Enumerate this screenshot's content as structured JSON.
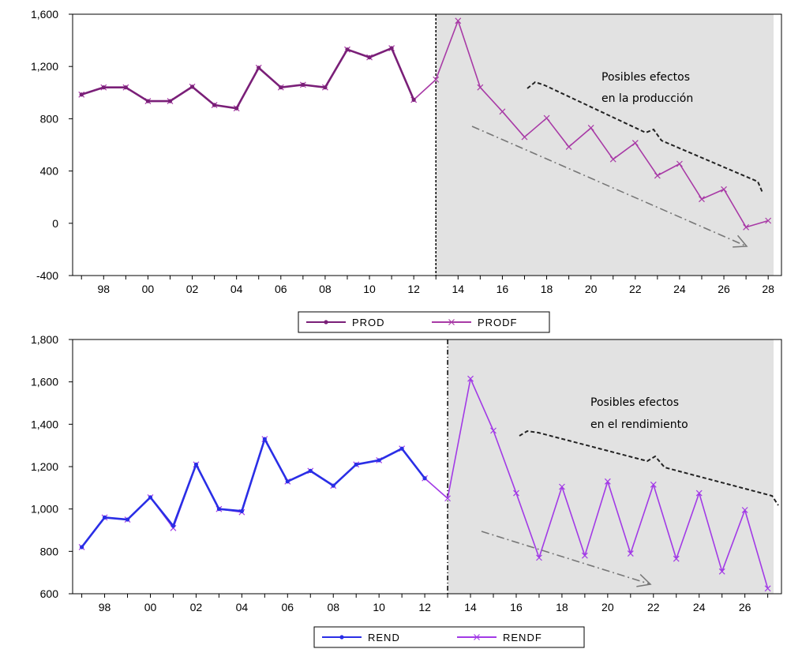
{
  "chart_data": [
    {
      "type": "line",
      "id": "production",
      "x_ticks": [
        "98",
        "00",
        "02",
        "04",
        "06",
        "08",
        "10",
        "12",
        "14",
        "16",
        "18",
        "20",
        "22",
        "24",
        "26",
        "28"
      ],
      "y_ticks": [
        "1,600",
        "1,200",
        "800",
        "400",
        "0",
        "-400"
      ],
      "ylim": [
        -400,
        1600
      ],
      "xlim": [
        1996.6,
        2028.6
      ],
      "grid": false,
      "forecast_shaded_from": 2013,
      "legend": {
        "placement": "bottom-center",
        "items": [
          "PROD",
          "PRODF"
        ]
      },
      "annotation": [
        "Posibles    efectos",
        "en la producción"
      ],
      "colors": {
        "PROD": "#7a1f78",
        "PRODF": "#a83aa6",
        "shade": "#e2e2e2"
      },
      "series": [
        {
          "name": "PROD",
          "marker": "dot",
          "x": [
            1997,
            1998,
            1999,
            2000,
            2001,
            2002,
            2003,
            2004,
            2005,
            2006,
            2007,
            2008,
            2009,
            2010,
            2011,
            2012
          ],
          "values": [
            985,
            1040,
            1040,
            935,
            935,
            1045,
            905,
            880,
            1190,
            1040,
            1060,
            1040,
            1330,
            1270,
            1340,
            945
          ]
        },
        {
          "name": "PRODF",
          "marker": "x",
          "x": [
            1997,
            1998,
            1999,
            2000,
            2001,
            2002,
            2003,
            2004,
            2005,
            2006,
            2007,
            2008,
            2009,
            2010,
            2011,
            2012,
            2013,
            2014,
            2015,
            2016,
            2017,
            2018,
            2019,
            2020,
            2021,
            2022,
            2023,
            2024,
            2025,
            2026,
            2027,
            2028
          ],
          "values": [
            985,
            1040,
            1040,
            935,
            935,
            1045,
            905,
            880,
            1190,
            1040,
            1060,
            1040,
            1330,
            1270,
            1340,
            945,
            1100,
            1550,
            1040,
            855,
            660,
            805,
            585,
            730,
            490,
            615,
            365,
            455,
            185,
            260,
            -30,
            20
          ]
        }
      ]
    },
    {
      "type": "line",
      "id": "yield",
      "x_ticks": [
        "98",
        "00",
        "02",
        "04",
        "06",
        "08",
        "10",
        "12",
        "14",
        "16",
        "18",
        "20",
        "22",
        "24",
        "26"
      ],
      "y_ticks": [
        "1,800",
        "1,600",
        "1,400",
        "1,200",
        "1,000",
        "800",
        "600"
      ],
      "ylim": [
        600,
        1800
      ],
      "xlim": [
        1996.6,
        2027.6
      ],
      "grid": false,
      "forecast_shaded_from": 2013,
      "legend": {
        "placement": "bottom-center",
        "items": [
          "REND",
          "RENDF"
        ]
      },
      "annotation": [
        "Posibles        efectos",
        "en el rendimiento"
      ],
      "colors": {
        "REND": "#2a2ee6",
        "RENDF": "#a23ae6",
        "shade": "#e2e2e2"
      },
      "series": [
        {
          "name": "REND",
          "marker": "dot",
          "x": [
            1997,
            1998,
            1999,
            2000,
            2001,
            2002,
            2003,
            2004,
            2005,
            2006,
            2007,
            2008,
            2009,
            2010,
            2011,
            2012
          ],
          "values": [
            820,
            960,
            950,
            1055,
            920,
            1210,
            1000,
            990,
            1330,
            1130,
            1180,
            1110,
            1210,
            1230,
            1285,
            1145
          ]
        },
        {
          "name": "RENDF",
          "marker": "x",
          "x": [
            1997,
            1998,
            1999,
            2000,
            2001,
            2002,
            2003,
            2004,
            2005,
            2006,
            2007,
            2008,
            2009,
            2010,
            2011,
            2012,
            2013,
            2014,
            2015,
            2016,
            2017,
            2018,
            2019,
            2020,
            2021,
            2022,
            2023,
            2024,
            2025,
            2026,
            2027
          ],
          "values": [
            820,
            960,
            950,
            1055,
            910,
            1210,
            1000,
            985,
            1330,
            1130,
            1180,
            1110,
            1210,
            1230,
            1285,
            1145,
            1050,
            1615,
            1370,
            1075,
            770,
            1105,
            780,
            1130,
            790,
            1115,
            765,
            1075,
            705,
            995,
            625
          ]
        }
      ]
    }
  ]
}
